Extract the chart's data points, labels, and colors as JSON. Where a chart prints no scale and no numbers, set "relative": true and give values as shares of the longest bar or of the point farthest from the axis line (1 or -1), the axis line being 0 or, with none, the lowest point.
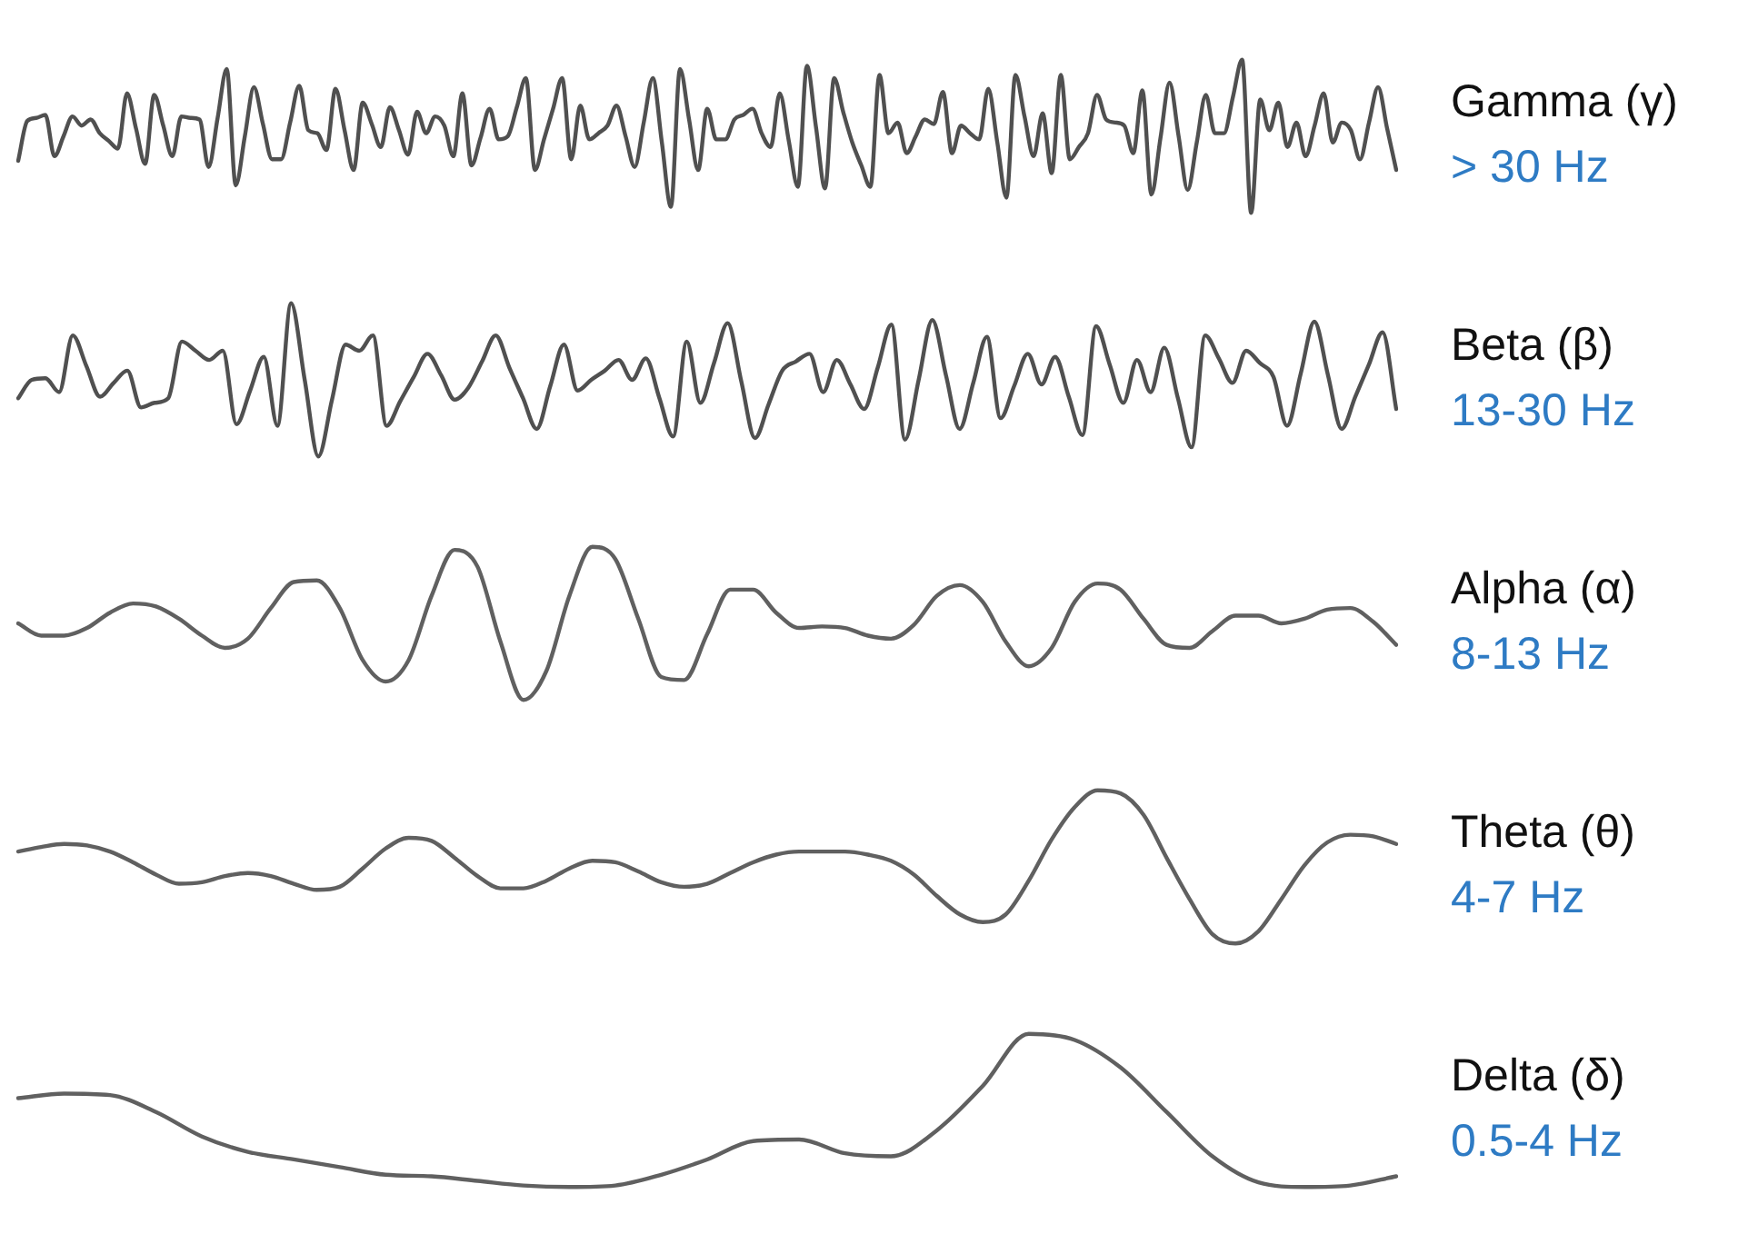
{
  "chart_data": [
    {
      "type": "line",
      "annotations": [
        "> 30 Hz"
      ],
      "relative": true,
      "tick_labels": false,
      "legend": false,
      "grid": false,
      "categories": [
        null,
        null,
        null,
        null,
        null,
        null,
        null,
        null,
        null,
        null,
        null,
        null,
        null,
        null,
        null,
        null,
        null,
        null,
        null,
        null,
        null,
        null,
        null,
        null,
        null,
        null,
        null,
        null,
        null,
        null,
        null,
        null,
        null,
        null,
        null,
        null,
        null,
        null,
        null,
        null,
        null,
        null,
        null,
        null,
        null,
        null,
        null,
        null,
        null,
        null,
        null,
        null,
        null,
        null,
        null,
        null,
        null,
        null,
        null,
        null,
        null,
        null,
        null,
        null,
        null,
        null,
        null,
        null,
        null,
        null,
        null,
        null,
        null,
        null,
        null,
        null,
        null,
        null,
        null,
        null,
        null,
        null,
        null,
        null,
        null,
        null,
        null,
        null,
        null,
        null,
        null,
        null,
        null,
        null,
        null,
        null,
        null,
        null,
        null,
        null,
        null,
        null,
        null,
        null,
        null,
        null,
        null,
        null,
        null,
        null,
        null,
        null,
        null,
        null,
        null,
        null,
        null,
        null,
        null,
        null,
        null,
        null,
        null,
        null,
        null,
        null,
        null,
        null,
        null,
        null,
        null,
        null,
        null,
        null,
        null,
        null,
        null,
        null,
        null,
        null,
        null,
        null,
        null,
        null,
        null,
        null,
        null,
        null,
        null,
        null,
        null,
        null,
        null
      ],
      "series": [
        {
          "name": "Gamma (γ)",
          "color": "#505050",
          "values": [
            0.34,
            0.6,
            0.62,
            0.64,
            0.37,
            0.5,
            0.63,
            0.57,
            0.61,
            0.52,
            0.47,
            0.42,
            0.78,
            0.55,
            0.32,
            0.77,
            0.57,
            0.37,
            0.63,
            0.62,
            0.61,
            0.3,
            0.62,
            0.94,
            0.18,
            0.5,
            0.82,
            0.58,
            0.35,
            0.35,
            0.59,
            0.83,
            0.54,
            0.52,
            0.41,
            0.81,
            0.54,
            0.28,
            0.72,
            0.58,
            0.43,
            0.69,
            0.54,
            0.38,
            0.66,
            0.52,
            0.63,
            0.57,
            0.37,
            0.78,
            0.31,
            0.49,
            0.68,
            0.48,
            0.5,
            0.69,
            0.88,
            0.28,
            0.48,
            0.68,
            0.88,
            0.35,
            0.7,
            0.48,
            0.52,
            0.57,
            0.7,
            0.5,
            0.3,
            0.59,
            0.88,
            0.46,
            0.04,
            0.94,
            0.61,
            0.28,
            0.68,
            0.48,
            0.48,
            0.61,
            0.64,
            0.68,
            0.52,
            0.43,
            0.78,
            0.47,
            0.17,
            0.96,
            0.56,
            0.16,
            0.88,
            0.66,
            0.46,
            0.31,
            0.17,
            0.9,
            0.52,
            0.59,
            0.39,
            0.5,
            0.61,
            0.58,
            0.79,
            0.39,
            0.57,
            0.52,
            0.48,
            0.81,
            0.46,
            0.1,
            0.9,
            0.63,
            0.37,
            0.65,
            0.26,
            0.9,
            0.35,
            0.43,
            0.52,
            0.77,
            0.61,
            0.59,
            0.57,
            0.39,
            0.8,
            0.12,
            0.49,
            0.85,
            0.5,
            0.15,
            0.46,
            0.77,
            0.52,
            0.52,
            0.76,
            1,
            0,
            0.74,
            0.54,
            0.72,
            0.43,
            0.59,
            0.37,
            0.57,
            0.78,
            0.46,
            0.59,
            0.54,
            0.35,
            0.59,
            0.82,
            0.55,
            0.28
          ]
        }
      ]
    },
    {
      "type": "line",
      "annotations": [
        "13-30 Hz"
      ],
      "relative": true,
      "tick_labels": false,
      "legend": false,
      "grid": false,
      "categories": [
        null,
        null,
        null,
        null,
        null,
        null,
        null,
        null,
        null,
        null,
        null,
        null,
        null,
        null,
        null,
        null,
        null,
        null,
        null,
        null,
        null,
        null,
        null,
        null,
        null,
        null,
        null,
        null,
        null,
        null,
        null,
        null,
        null,
        null,
        null,
        null,
        null,
        null,
        null,
        null,
        null,
        null,
        null,
        null,
        null,
        null,
        null,
        null,
        null,
        null,
        null,
        null,
        null,
        null,
        null,
        null,
        null,
        null,
        null,
        null,
        null,
        null,
        null,
        null,
        null,
        null,
        null,
        null,
        null,
        null,
        null,
        null,
        null,
        null,
        null,
        null,
        null,
        null,
        null,
        null,
        null,
        null,
        null,
        null,
        null,
        null,
        null,
        null,
        null,
        null,
        null,
        null,
        null,
        null,
        null,
        null,
        null,
        null,
        null,
        null,
        null,
        null
      ],
      "series": [
        {
          "name": "Beta (β)",
          "color": "#505050",
          "values": [
            0.38,
            0.5,
            0.51,
            0.42,
            0.79,
            0.59,
            0.39,
            0.48,
            0.56,
            0.32,
            0.35,
            0.38,
            0.75,
            0.69,
            0.63,
            0.69,
            0.21,
            0.43,
            0.65,
            0.2,
            1,
            0.5,
            0,
            0.37,
            0.73,
            0.69,
            0.79,
            0.2,
            0.36,
            0.52,
            0.67,
            0.53,
            0.37,
            0.45,
            0.62,
            0.79,
            0.58,
            0.38,
            0.18,
            0.46,
            0.73,
            0.43,
            0.5,
            0.56,
            0.63,
            0.5,
            0.64,
            0.38,
            0.13,
            0.75,
            0.35,
            0.61,
            0.87,
            0.49,
            0.12,
            0.34,
            0.56,
            0.62,
            0.67,
            0.42,
            0.63,
            0.47,
            0.31,
            0.58,
            0.86,
            0.11,
            0.5,
            0.89,
            0.53,
            0.18,
            0.48,
            0.78,
            0.25,
            0.46,
            0.67,
            0.47,
            0.65,
            0.39,
            0.14,
            0.85,
            0.6,
            0.35,
            0.63,
            0.42,
            0.71,
            0.38,
            0.06,
            0.79,
            0.64,
            0.48,
            0.69,
            0.61,
            0.52,
            0.2,
            0.54,
            0.88,
            0.53,
            0.18,
            0.39,
            0.6,
            0.81,
            0.31
          ]
        }
      ]
    },
    {
      "type": "line",
      "annotations": [
        "8-13 Hz"
      ],
      "relative": true,
      "tick_labels": false,
      "legend": false,
      "grid": false,
      "categories": [
        null,
        null,
        null,
        null,
        null,
        null,
        null,
        null,
        null,
        null,
        null,
        null,
        null,
        null,
        null,
        null,
        null,
        null,
        null,
        null,
        null,
        null,
        null,
        null,
        null,
        null,
        null,
        null,
        null,
        null,
        null,
        null,
        null,
        null,
        null,
        null,
        null,
        null,
        null,
        null,
        null,
        null,
        null,
        null,
        null,
        null,
        null,
        null,
        null,
        null,
        null,
        null,
        null,
        null,
        null,
        null,
        null,
        null,
        null,
        null,
        null
      ],
      "series": [
        {
          "name": "Alpha (α)",
          "color": "#606060",
          "values": [
            0.5,
            0.42,
            0.42,
            0.47,
            0.57,
            0.63,
            0.61,
            0.53,
            0.42,
            0.34,
            0.4,
            0.6,
            0.77,
            0.78,
            0.6,
            0.26,
            0.12,
            0.26,
            0.68,
            0.98,
            0.87,
            0.38,
            0,
            0.19,
            0.68,
            1,
            0.92,
            0.53,
            0.15,
            0.13,
            0.43,
            0.72,
            0.72,
            0.57,
            0.47,
            0.48,
            0.47,
            0.42,
            0.4,
            0.49,
            0.68,
            0.75,
            0.64,
            0.38,
            0.22,
            0.34,
            0.64,
            0.76,
            0.72,
            0.53,
            0.36,
            0.34,
            0.45,
            0.55,
            0.55,
            0.5,
            0.53,
            0.59,
            0.6,
            0.51,
            0.36
          ]
        }
      ]
    },
    {
      "type": "line",
      "annotations": [
        "4-7 Hz"
      ],
      "relative": true,
      "tick_labels": false,
      "legend": false,
      "grid": false,
      "categories": [
        null,
        null,
        null,
        null,
        null,
        null,
        null,
        null,
        null,
        null,
        null,
        null,
        null,
        null,
        null,
        null,
        null,
        null,
        null,
        null,
        null,
        null,
        null,
        null,
        null,
        null,
        null,
        null,
        null,
        null,
        null,
        null,
        null,
        null,
        null,
        null,
        null,
        null,
        null,
        null,
        null,
        null,
        null,
        null,
        null,
        null,
        null,
        null,
        null,
        null,
        null,
        null,
        null,
        null,
        null,
        null,
        null,
        null,
        null,
        null,
        null
      ],
      "series": [
        {
          "name": "Theta (θ)",
          "color": "#606060",
          "values": [
            0.6,
            0.63,
            0.65,
            0.64,
            0.6,
            0.53,
            0.45,
            0.39,
            0.4,
            0.44,
            0.46,
            0.44,
            0.39,
            0.35,
            0.37,
            0.49,
            0.62,
            0.69,
            0.67,
            0.56,
            0.44,
            0.36,
            0.36,
            0.41,
            0.49,
            0.54,
            0.53,
            0.47,
            0.4,
            0.37,
            0.39,
            0.46,
            0.53,
            0.58,
            0.6,
            0.6,
            0.6,
            0.58,
            0.54,
            0.45,
            0.31,
            0.19,
            0.14,
            0.19,
            0.41,
            0.68,
            0.89,
            1,
            0.98,
            0.84,
            0.56,
            0.29,
            0.06,
            0,
            0.08,
            0.29,
            0.51,
            0.66,
            0.71,
            0.7,
            0.65
          ]
        }
      ]
    },
    {
      "type": "line",
      "annotations": [
        "0.5-4 Hz"
      ],
      "relative": true,
      "tick_labels": false,
      "legend": false,
      "grid": false,
      "categories": [
        null,
        null,
        null,
        null,
        null,
        null,
        null,
        null,
        null,
        null,
        null,
        null,
        null,
        null,
        null,
        null,
        null,
        null,
        null,
        null,
        null,
        null,
        null,
        null,
        null,
        null,
        null,
        null,
        null,
        null,
        null
      ],
      "series": [
        {
          "name": "Delta (δ)",
          "color": "#606060",
          "values": [
            0.58,
            0.61,
            0.6,
            0.49,
            0.33,
            0.23,
            0.18,
            0.13,
            0.08,
            0.07,
            0.04,
            0.01,
            0,
            0.01,
            0.08,
            0.18,
            0.3,
            0.31,
            0.22,
            0.2,
            0.37,
            0.66,
            1,
            0.96,
            0.78,
            0.49,
            0.2,
            0.03,
            0,
            0.01,
            0.07
          ]
        }
      ]
    }
  ]
}
